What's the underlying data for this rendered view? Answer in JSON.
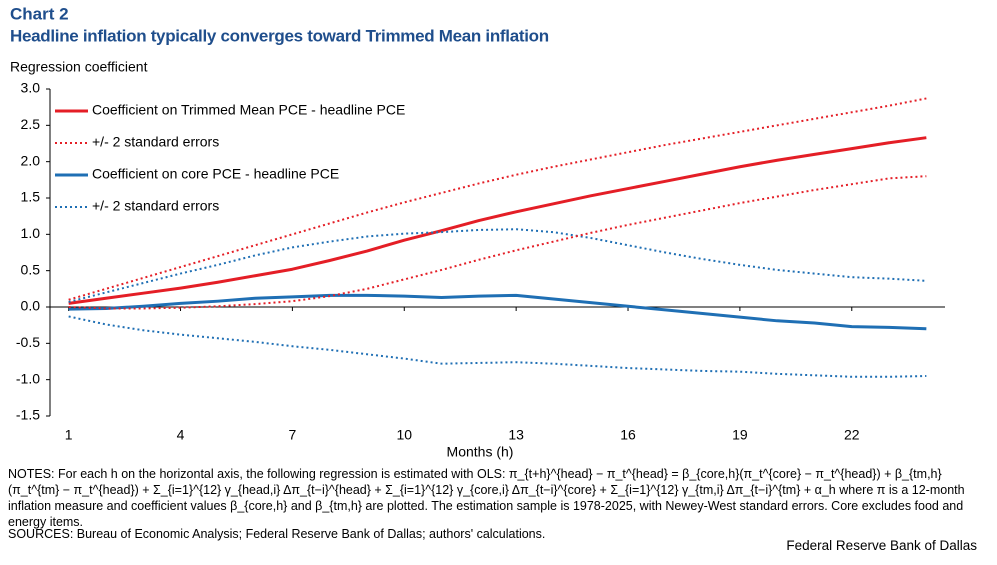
{
  "chart_data": {
    "type": "line",
    "title": "Chart 2",
    "subtitle": "Headline inflation typically converges toward Trimmed Mean inflation",
    "y_label": "Regression coefficient",
    "x_label": "Months (h)",
    "x": [
      1,
      2,
      3,
      4,
      5,
      6,
      7,
      8,
      9,
      10,
      11,
      12,
      13,
      14,
      15,
      16,
      17,
      18,
      19,
      20,
      21,
      22,
      23,
      24
    ],
    "xlim": [
      0.5,
      24.5
    ],
    "xticks": [
      1,
      4,
      7,
      10,
      13,
      16,
      19,
      22
    ],
    "ylim": [
      -1.5,
      3.0
    ],
    "yticks": [
      {
        "value": -1.5,
        "label": "-1.5"
      },
      {
        "value": -1.0,
        "label": "-1.0"
      },
      {
        "value": -0.5,
        "label": "-0.5"
      },
      {
        "value": 0,
        "label": "0.0"
      },
      {
        "value": 0.5,
        "label": "0.5"
      },
      {
        "value": 1.0,
        "label": "1.0"
      },
      {
        "value": 1.5,
        "label": "1.5"
      },
      {
        "value": 2.0,
        "label": "2.0"
      },
      {
        "value": 2.5,
        "label": "2.5"
      },
      {
        "value": 3.0,
        "label": "3.0"
      }
    ],
    "legend": "upper left",
    "series": [
      {
        "name": "Coefficient on Trimmed Mean PCE - headline PCE",
        "color": "#e41e26",
        "style": "solid",
        "values": [
          0.05,
          0.12,
          0.19,
          0.26,
          0.34,
          0.43,
          0.52,
          0.64,
          0.77,
          0.92,
          1.05,
          1.19,
          1.31,
          1.42,
          1.53,
          1.63,
          1.73,
          1.83,
          1.93,
          2.02,
          2.1,
          2.18,
          2.26,
          2.33
        ]
      },
      {
        "name": "+/- 2 standard errors",
        "color": "#e41e26",
        "style": "dotted",
        "values": [
          0.1,
          0.25,
          0.4,
          0.55,
          0.7,
          0.85,
          1.0,
          1.15,
          1.3,
          1.44,
          1.57,
          1.7,
          1.82,
          1.93,
          2.03,
          2.13,
          2.23,
          2.32,
          2.41,
          2.5,
          2.59,
          2.68,
          2.77,
          2.87
        ]
      },
      {
        "name": "Coefficient on core PCE - headline PCE",
        "color": "#1f6fb4",
        "style": "solid",
        "values": [
          -0.03,
          -0.02,
          0.01,
          0.05,
          0.08,
          0.12,
          0.14,
          0.16,
          0.16,
          0.15,
          0.13,
          0.15,
          0.16,
          0.11,
          0.06,
          0.01,
          -0.04,
          -0.09,
          -0.14,
          -0.19,
          -0.22,
          -0.27,
          -0.28,
          -0.3
        ]
      },
      {
        "name": "+/- 2 standard errors",
        "color": "#1f6fb4",
        "style": "dotted",
        "values": [
          0.07,
          0.2,
          0.33,
          0.46,
          0.58,
          0.71,
          0.82,
          0.9,
          0.97,
          1.01,
          1.03,
          1.06,
          1.07,
          1.03,
          0.95,
          0.85,
          0.75,
          0.66,
          0.58,
          0.51,
          0.46,
          0.41,
          0.39,
          0.36
        ]
      },
      {
        "name": "",
        "color": "#e41e26",
        "style": "dotted",
        "legend": false,
        "values": [
          0.0,
          -0.02,
          -0.02,
          -0.01,
          0.01,
          0.04,
          0.08,
          0.15,
          0.25,
          0.38,
          0.51,
          0.65,
          0.78,
          0.9,
          1.02,
          1.13,
          1.23,
          1.33,
          1.43,
          1.52,
          1.61,
          1.69,
          1.77,
          1.8
        ]
      },
      {
        "name": "",
        "color": "#1f6fb4",
        "style": "dotted",
        "legend": false,
        "values": [
          -0.13,
          -0.24,
          -0.32,
          -0.38,
          -0.43,
          -0.48,
          -0.54,
          -0.59,
          -0.65,
          -0.71,
          -0.78,
          -0.77,
          -0.76,
          -0.78,
          -0.81,
          -0.84,
          -0.86,
          -0.88,
          -0.89,
          -0.92,
          -0.94,
          -0.96,
          -0.96,
          -0.95
        ]
      }
    ],
    "notes": "NOTES: For each h on the horizontal axis, the following regression is estimated with OLS: π_{t+h}^{head} − π_t^{head} = β_{core,h}(π_t^{core} − π_t^{head}) + β_{tm,h}(π_t^{tm} − π_t^{head}) + Σ_{i=1}^{12} γ_{head,i} Δπ_{t−i}^{head} + Σ_{i=1}^{12} γ_{core,i} Δπ_{t−i}^{core} + Σ_{i=1}^{12} γ_{tm,i} Δπ_{t−i}^{tm} + α_h where π is a 12-month inflation measure and coefficient values β_{core,h} and β_{tm,h} are plotted. The estimation sample is 1978-2025, with Newey-West standard errors. Core excludes food and energy items.",
    "sources": "SOURCES: Bureau of Economic Analysis; Federal Reserve Bank of Dallas; authors' calculations.",
    "credit": "Federal Reserve Bank of Dallas"
  }
}
